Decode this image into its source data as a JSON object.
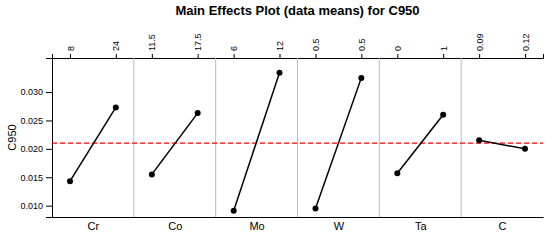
{
  "chart_data": {
    "type": "line",
    "title": "Main Effects Plot (data means) for C950",
    "ylabel": "C950",
    "categories": [
      "Cr",
      "Co",
      "Mo",
      "W",
      "Ta",
      "C"
    ],
    "levels": [
      [
        "8",
        "24"
      ],
      [
        "11.5",
        "17.5"
      ],
      [
        "6",
        "12"
      ],
      [
        "0.5",
        "0.5"
      ],
      [
        "0",
        "1"
      ],
      [
        "0.09",
        "0.12"
      ]
    ],
    "values": [
      [
        0.0143,
        0.0273
      ],
      [
        0.0155,
        0.0263
      ],
      [
        0.0091,
        0.0334
      ],
      [
        0.0095,
        0.0325
      ],
      [
        0.0157,
        0.026
      ],
      [
        0.0215,
        0.02
      ]
    ],
    "color": "#000000",
    "marker": "circle",
    "mean_line": {
      "value": 0.021,
      "color": "#ff0000",
      "line_style": "dashed"
    },
    "ylim": [
      0.008,
      0.036
    ],
    "yticks": [
      {
        "value": 0.01,
        "label": "0.010"
      },
      0.015,
      {
        "value": 0.02,
        "label": "0.020"
      },
      0.025,
      {
        "value": 0.03,
        "label": "0.030"
      }
    ]
  }
}
